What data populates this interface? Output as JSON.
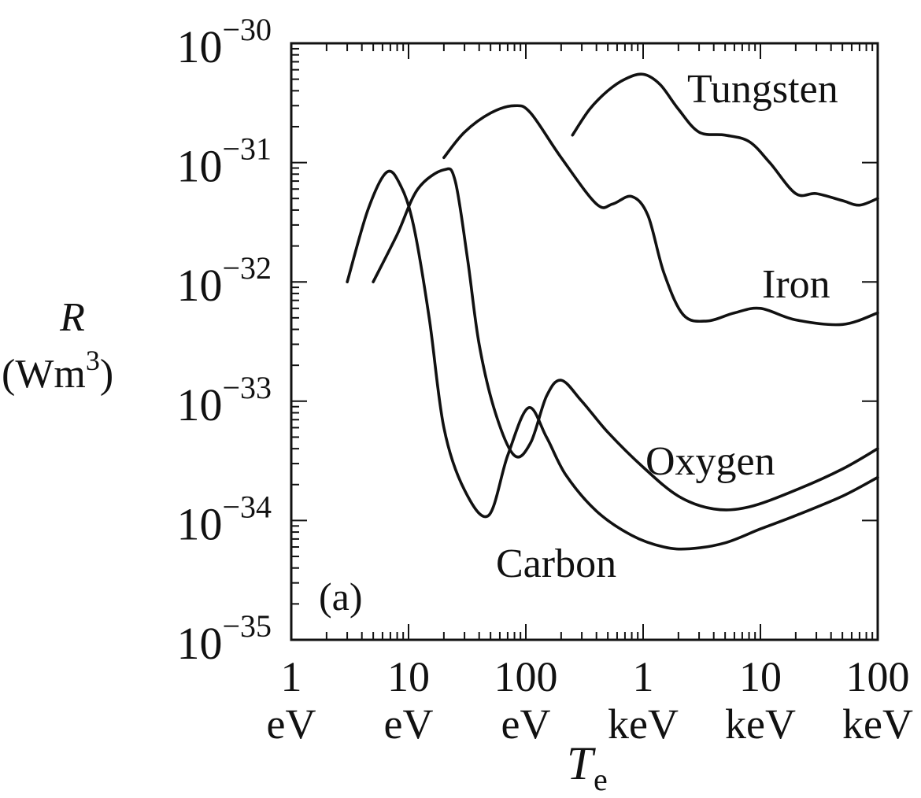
{
  "chart_data": {
    "type": "line",
    "title": "",
    "xlabel": "T",
    "xlabel_sub": "e",
    "ylabel": "R",
    "yunit": "(Wm",
    "yunit_sup": "3",
    "yunit_close": ")",
    "panel_label": "(a)",
    "x_scale": "log",
    "y_scale": "log",
    "xlim_eV": [
      1,
      100000
    ],
    "ylim": [
      1e-35,
      1e-30
    ],
    "legend": "none; curves labelled directly",
    "grid": false,
    "x_ticks": [
      {
        "value_eV": 1,
        "number": "1",
        "unit": "eV"
      },
      {
        "value_eV": 10,
        "number": "10",
        "unit": "eV"
      },
      {
        "value_eV": 100,
        "number": "100",
        "unit": "eV"
      },
      {
        "value_eV": 1000,
        "number": "1",
        "unit": "keV"
      },
      {
        "value_eV": 10000,
        "number": "10",
        "unit": "keV"
      },
      {
        "value_eV": 100000,
        "number": "100",
        "unit": "keV"
      }
    ],
    "y_ticks": [
      {
        "value": 1e-30,
        "base": "10",
        "exp": "−30"
      },
      {
        "value": 1e-31,
        "base": "10",
        "exp": "−31"
      },
      {
        "value": 1e-32,
        "base": "10",
        "exp": "−32"
      },
      {
        "value": 1e-33,
        "base": "10",
        "exp": "−33"
      },
      {
        "value": 1e-34,
        "base": "10",
        "exp": "−34"
      },
      {
        "value": 1e-35,
        "base": "10",
        "exp": "−35"
      }
    ],
    "series": [
      {
        "name": "Tungsten",
        "x_eV": [
          250,
          350,
          500,
          700,
          1000,
          1400,
          2000,
          3000,
          5000,
          8000,
          12000,
          20000,
          30000,
          50000,
          70000,
          100000
        ],
        "y": [
          1.7e-31,
          2.8e-31,
          4e-31,
          5e-31,
          5.5e-31,
          4.5e-31,
          2.8e-31,
          1.8e-31,
          1.7e-31,
          1.5e-31,
          1e-31,
          5.5e-32,
          5.5e-32,
          4.8e-32,
          4.4e-32,
          5e-32
        ]
      },
      {
        "name": "Iron",
        "x_eV": [
          20,
          30,
          50,
          80,
          110,
          200,
          400,
          550,
          800,
          1100,
          1500,
          2200,
          3500,
          6000,
          10000,
          20000,
          50000,
          100000
        ],
        "y": [
          1.1e-31,
          1.8e-31,
          2.6e-31,
          3e-31,
          2.6e-31,
          1.1e-31,
          4.5e-32,
          4.5e-32,
          5.2e-32,
          3.6e-32,
          1.2e-32,
          5.3e-33,
          4.7e-33,
          5.5e-33,
          6e-33,
          4.8e-33,
          4.4e-33,
          5.5e-33
        ]
      },
      {
        "name": "Oxygen",
        "x_eV": [
          5,
          8,
          12,
          20,
          25,
          32,
          40,
          55,
          80,
          110,
          150,
          200,
          300,
          500,
          1000,
          2000,
          4000,
          8000,
          20000,
          50000,
          100000
        ],
        "y": [
          1e-32,
          2.5e-32,
          6e-32,
          8.7e-32,
          7e-32,
          1.5e-32,
          3e-33,
          8e-34,
          3.5e-34,
          4.5e-34,
          1.1e-33,
          1.5e-33,
          1e-33,
          5.5e-34,
          2.8e-34,
          1.6e-34,
          1.25e-34,
          1.3e-34,
          1.8e-34,
          2.7e-34,
          4e-34
        ]
      },
      {
        "name": "Carbon",
        "x_eV": [
          3,
          4.5,
          6.5,
          8.5,
          11,
          15,
          20,
          30,
          48,
          70,
          105,
          150,
          220,
          400,
          800,
          1500,
          2500,
          5000,
          10000,
          20000,
          50000,
          100000
        ],
        "y": [
          1e-32,
          4e-32,
          8.3e-32,
          6.5e-32,
          3e-32,
          5e-33,
          6e-34,
          1.8e-34,
          1.1e-34,
          3.5e-34,
          8.8e-34,
          5e-34,
          2.4e-34,
          1.2e-34,
          7.5e-35,
          6e-35,
          5.8e-35,
          6.5e-35,
          8.5e-35,
          1.1e-34,
          1.6e-34,
          2.3e-34
        ]
      }
    ],
    "series_labels": [
      {
        "name": "Tungsten"
      },
      {
        "name": "Iron"
      },
      {
        "name": "Oxygen"
      },
      {
        "name": "Carbon"
      }
    ]
  }
}
